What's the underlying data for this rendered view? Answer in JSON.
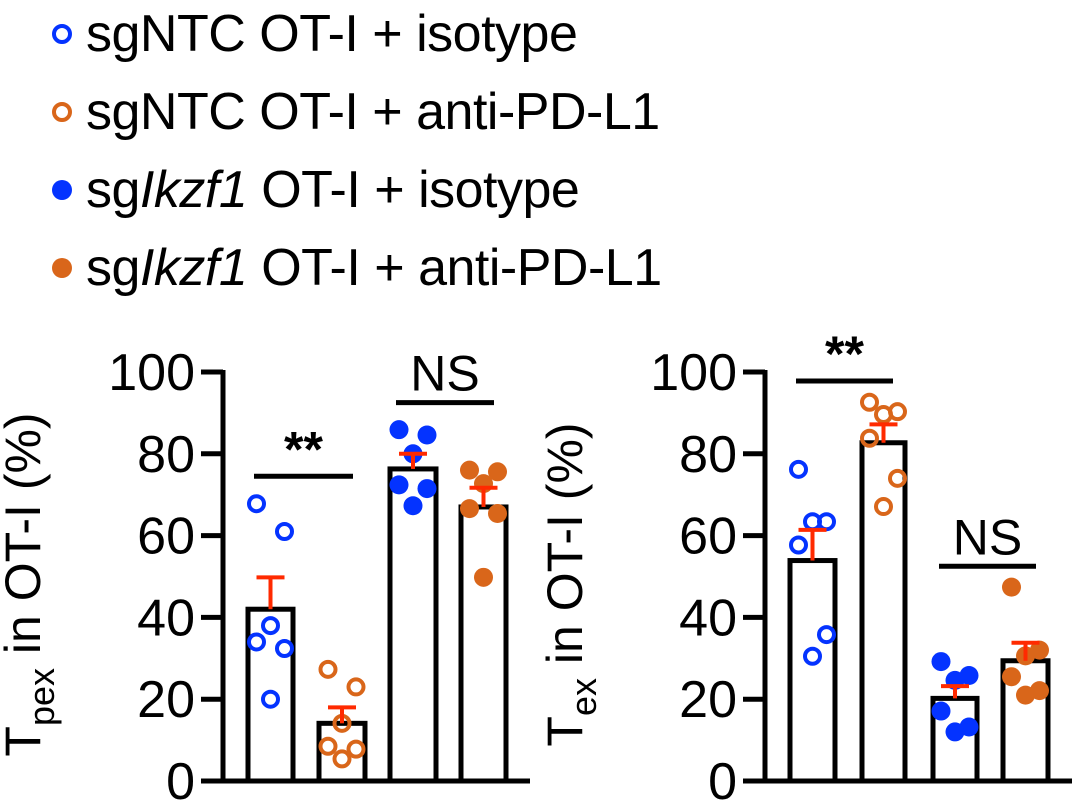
{
  "legend": [
    {
      "prefix": "sgNTC",
      "italic": "",
      "suffix": " OT-I + isotype",
      "color": "#0433FF",
      "filled": false
    },
    {
      "prefix": "sgNTC",
      "italic": "",
      "suffix": " OT-I + anti-PD-L1",
      "color": "#D9661A",
      "filled": false
    },
    {
      "prefix": "sg",
      "italic": "Ikzf1",
      "suffix": " OT-I + isotype",
      "color": "#0433FF",
      "filled": true
    },
    {
      "prefix": "sg",
      "italic": "Ikzf1",
      "suffix": " OT-I + anti-PD-L1",
      "color": "#D9661A",
      "filled": true
    }
  ],
  "colors": {
    "blue": "#0433FF",
    "orange": "#D9661A",
    "error_bar": "#FF2A00",
    "axis": "#000000"
  },
  "chart_data": [
    {
      "type": "bar",
      "title": "",
      "ylabel_main": "T",
      "ylabel_sub": "pex",
      "ylabel_rest": " in OT-I (%)",
      "xlabel": "",
      "ylim": [
        0,
        100
      ],
      "yticks": [
        0,
        20,
        40,
        60,
        80,
        100
      ],
      "categories": [
        "sgNTC OT-I + isotype",
        "sgNTC OT-I + anti-PD-L1",
        "sgIkzf1 OT-I + isotype",
        "sgIkzf1 OT-I + anti-PD-L1"
      ],
      "series": [
        {
          "name": "sgNTC OT-I + isotype",
          "mean": 42,
          "sem": 7.8,
          "points": [
            67.8,
            61,
            38,
            34,
            32.4,
            20
          ],
          "color": "#0433FF",
          "filled": false
        },
        {
          "name": "sgNTC OT-I + anti-PD-L1",
          "mean": 14.1,
          "sem": 3.9,
          "points": [
            27.3,
            23,
            14.1,
            8.5,
            7.8,
            5.4
          ],
          "color": "#D9661A",
          "filled": false
        },
        {
          "name": "sgIkzf1 OT-I + isotype",
          "mean": 76.3,
          "sem": 3.7,
          "points": [
            85.9,
            84.6,
            80,
            72.4,
            71.5,
            67.3
          ],
          "color": "#0433FF",
          "filled": true
        },
        {
          "name": "sgIkzf1 OT-I + anti-PD-L1",
          "mean": 67,
          "sem": 4.7,
          "points": [
            76,
            75.6,
            72.7,
            66.6,
            65.4,
            49.8
          ],
          "color": "#D9661A",
          "filled": true
        }
      ],
      "annotations": [
        {
          "text": "**",
          "from": 0,
          "to": 1,
          "y": 74.5
        },
        {
          "text": "NS",
          "from": 2,
          "to": 3,
          "y": 92.5
        }
      ]
    },
    {
      "type": "bar",
      "title": "",
      "ylabel_main": "T",
      "ylabel_sub": "ex",
      "ylabel_rest": " in OT-I (%)",
      "xlabel": "",
      "ylim": [
        0,
        100
      ],
      "yticks": [
        0,
        20,
        40,
        60,
        80,
        100
      ],
      "categories": [
        "sgNTC OT-I + isotype",
        "sgNTC OT-I + anti-PD-L1",
        "sgIkzf1 OT-I + isotype",
        "sgIkzf1 OT-I + anti-PD-L1"
      ],
      "series": [
        {
          "name": "sgNTC OT-I + isotype",
          "mean": 53.9,
          "sem": 7.5,
          "points": [
            76.2,
            63.4,
            63.4,
            57.7,
            35.8,
            30.5
          ],
          "color": "#0433FF",
          "filled": false
        },
        {
          "name": "sgNTC OT-I + anti-PD-L1",
          "mean": 82.7,
          "sem": 4.5,
          "points": [
            92.6,
            90.3,
            89.6,
            83.8,
            74,
            67.1
          ],
          "color": "#D9661A",
          "filled": false
        },
        {
          "name": "sgIkzf1 OT-I + isotype",
          "mean": 20.2,
          "sem": 3,
          "points": [
            29.2,
            25.8,
            24.6,
            17.1,
            13.2,
            12
          ],
          "color": "#0433FF",
          "filled": true
        },
        {
          "name": "sgIkzf1 OT-I + anti-PD-L1",
          "mean": 29.4,
          "sem": 4.4,
          "points": [
            47.4,
            32,
            30.6,
            25.5,
            22.1,
            21
          ],
          "color": "#D9661A",
          "filled": true
        }
      ],
      "annotations": [
        {
          "text": "**",
          "from": 0,
          "to": 1,
          "y": 97.8
        },
        {
          "text": "NS",
          "from": 2,
          "to": 3,
          "y": 52.5
        }
      ]
    }
  ]
}
